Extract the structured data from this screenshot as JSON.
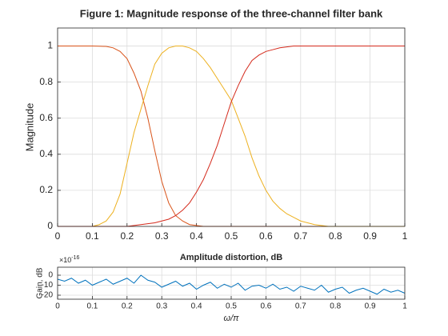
{
  "chart_data": [
    {
      "type": "line",
      "title": "Figure 1: Magnitude response of the three-channel filter bank",
      "y_label": "Magnitude",
      "xlim": [
        0,
        1
      ],
      "xticks": [
        0,
        0.1,
        0.2,
        0.3,
        0.4,
        0.5,
        0.6,
        0.7,
        0.8,
        0.9,
        1
      ],
      "ylim": [
        0,
        1.1
      ],
      "yticks": [
        0,
        0.2,
        0.4,
        0.6,
        0.8,
        1
      ],
      "grid": true,
      "x": [
        0,
        0.02,
        0.04,
        0.06,
        0.08,
        0.1,
        0.12,
        0.14,
        0.16,
        0.18,
        0.2,
        0.22,
        0.24,
        0.26,
        0.28,
        0.3,
        0.32,
        0.34,
        0.36,
        0.38,
        0.4,
        0.42,
        0.44,
        0.46,
        0.48,
        0.5,
        0.52,
        0.54,
        0.56,
        0.58,
        0.6,
        0.62,
        0.64,
        0.66,
        0.68,
        0.7,
        0.72,
        0.74,
        0.76,
        0.78,
        0.8,
        0.82,
        0.84,
        0.86,
        0.88,
        0.9,
        0.92,
        0.94,
        0.96,
        0.98,
        1
      ],
      "series": [
        {
          "color": "#d95319",
          "values": [
            1,
            1,
            1,
            1,
            1,
            1,
            0.999,
            0.998,
            0.99,
            0.97,
            0.93,
            0.85,
            0.75,
            0.6,
            0.42,
            0.25,
            0.13,
            0.06,
            0.03,
            0.01,
            0.005,
            0,
            0,
            0,
            0,
            0,
            0,
            0,
            0,
            0,
            0,
            0,
            0,
            0,
            0,
            0,
            0,
            0,
            0,
            0,
            0,
            0,
            0,
            0,
            0,
            0,
            0,
            0,
            0,
            0,
            0
          ]
        },
        {
          "color": "#edb120",
          "values": [
            0,
            0,
            0,
            0,
            0,
            0,
            0.01,
            0.03,
            0.08,
            0.18,
            0.35,
            0.52,
            0.65,
            0.78,
            0.9,
            0.96,
            0.99,
            1,
            1,
            0.99,
            0.97,
            0.93,
            0.88,
            0.82,
            0.76,
            0.7,
            0.6,
            0.5,
            0.38,
            0.28,
            0.2,
            0.14,
            0.1,
            0.07,
            0.05,
            0.03,
            0.02,
            0.01,
            0.005,
            0,
            0,
            0,
            0,
            0,
            0,
            0,
            0,
            0,
            0,
            0,
            0
          ]
        },
        {
          "color": "#d42a1c",
          "values": [
            0,
            0,
            0,
            0,
            0,
            0,
            0,
            0,
            0,
            0,
            0,
            0.005,
            0.01,
            0.015,
            0.02,
            0.03,
            0.04,
            0.06,
            0.09,
            0.13,
            0.19,
            0.26,
            0.35,
            0.45,
            0.57,
            0.69,
            0.78,
            0.86,
            0.92,
            0.95,
            0.97,
            0.98,
            0.99,
            0.995,
            1,
            1,
            1,
            1,
            1,
            1,
            1,
            1,
            1,
            1,
            1,
            1,
            1,
            1,
            1,
            1,
            1
          ]
        }
      ]
    },
    {
      "type": "line",
      "title": "Amplitude distortion, dB",
      "y_label": "Gain, dB",
      "x_label": "ω/π",
      "y_exponent": {
        "base": "×10",
        "power": "-16"
      },
      "xlim": [
        0,
        1
      ],
      "xticks": [
        0,
        0.1,
        0.2,
        0.3,
        0.4,
        0.5,
        0.6,
        0.7,
        0.8,
        0.9,
        1
      ],
      "ylim": [
        -24,
        8
      ],
      "yticks": [
        -20,
        -10,
        0
      ],
      "grid": true,
      "x": [
        0,
        0.02,
        0.04,
        0.06,
        0.08,
        0.1,
        0.12,
        0.14,
        0.16,
        0.18,
        0.2,
        0.22,
        0.24,
        0.26,
        0.28,
        0.3,
        0.32,
        0.34,
        0.36,
        0.38,
        0.4,
        0.42,
        0.44,
        0.46,
        0.48,
        0.5,
        0.52,
        0.54,
        0.56,
        0.58,
        0.6,
        0.62,
        0.64,
        0.66,
        0.68,
        0.7,
        0.72,
        0.74,
        0.76,
        0.78,
        0.8,
        0.82,
        0.84,
        0.86,
        0.88,
        0.9,
        0.92,
        0.94,
        0.96,
        0.98,
        1
      ],
      "series": [
        {
          "color": "#0072bd",
          "values": [
            -4,
            -6,
            -3,
            -8,
            -5,
            -10,
            -7,
            -4,
            -9,
            -6,
            -3,
            -8,
            0,
            -5,
            -7,
            -12,
            -9,
            -6,
            -11,
            -8,
            -14,
            -10,
            -7,
            -13,
            -9,
            -12,
            -8,
            -15,
            -11,
            -10,
            -13,
            -9,
            -14,
            -12,
            -16,
            -11,
            -13,
            -15,
            -10,
            -17,
            -14,
            -12,
            -18,
            -15,
            -13,
            -16,
            -19,
            -14,
            -17,
            -15,
            -18
          ]
        }
      ]
    }
  ]
}
